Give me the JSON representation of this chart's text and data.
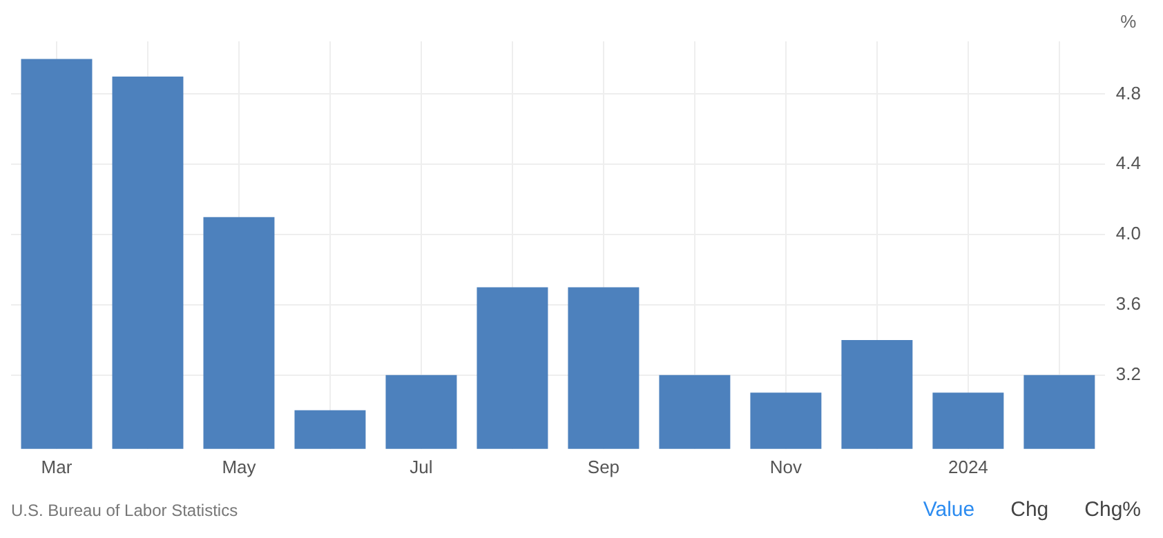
{
  "chart_data": {
    "type": "bar",
    "ylabel": "%",
    "categories": [
      "Mar",
      null,
      "May",
      null,
      "Jul",
      null,
      "Sep",
      null,
      "Nov",
      null,
      "2024",
      null
    ],
    "values": [
      5.0,
      4.9,
      4.1,
      3.0,
      3.2,
      3.7,
      3.7,
      3.2,
      3.1,
      3.4,
      3.1,
      3.2
    ],
    "color": "#4d81bd",
    "ylim": [
      2.78,
      5.1
    ],
    "yticks": [
      3.2,
      3.6,
      {
        "value": 4,
        "label": "4.0"
      },
      4.4,
      4.8
    ],
    "grid": true,
    "annotations": [
      "U.S. Bureau of Labor Statistics",
      "Value",
      "Chg",
      "Chg%"
    ]
  }
}
